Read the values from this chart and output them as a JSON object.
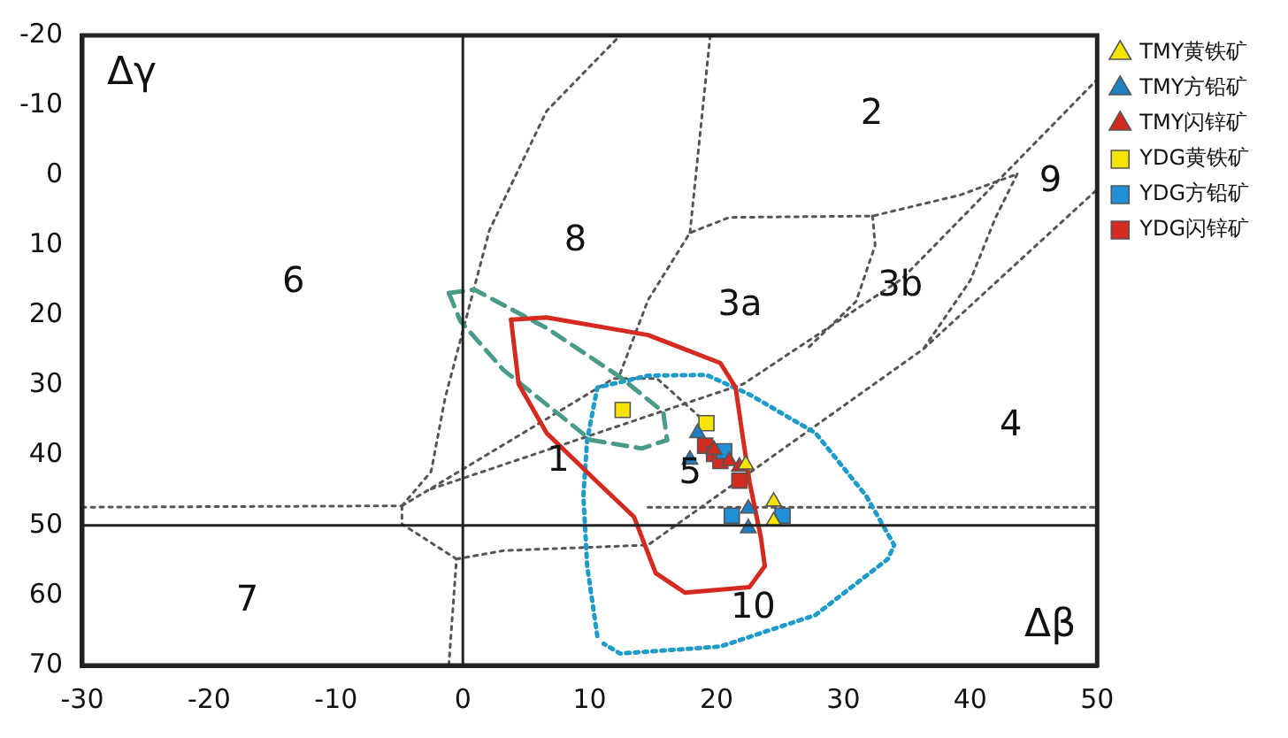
{
  "chart_data": {
    "type": "scatter",
    "xlabel": "Δβ",
    "ylabel": "Δγ",
    "xlim": [
      -30,
      50
    ],
    "xticks": [
      -30,
      -20,
      -10,
      0,
      10,
      20,
      30,
      40,
      50
    ],
    "ylim": [
      70,
      -20
    ],
    "yticks": [
      -20,
      -10,
      0,
      10,
      20,
      30,
      40,
      50,
      60,
      70
    ],
    "grid": false,
    "legend": "right",
    "ref_lines": [
      {
        "axis": "x",
        "value": 0,
        "color": "#222222",
        "line_style": "solid"
      },
      {
        "axis": "y",
        "value": 50,
        "color": "#222222",
        "line_style": "solid"
      }
    ],
    "series": [
      {
        "name": "TMY黄铁矿",
        "color": "#f5e300",
        "marker": "triangle",
        "x": [
          24.5,
          24.5,
          22.3
        ],
        "values": [
          46.6,
          49.4,
          41.3
        ]
      },
      {
        "name": "TMY方铅矿",
        "color": "#1f7fc4",
        "marker": "triangle",
        "x": [
          17.9,
          18.5,
          22.5,
          22.5
        ],
        "values": [
          40.6,
          36.8,
          47.6,
          50.4
        ]
      },
      {
        "name": "TMY闪锌矿",
        "color": "#d42a20",
        "marker": "triangle",
        "x": [
          19.8,
          21.0,
          21.8
        ],
        "values": [
          39.2,
          40.8,
          41.6
        ]
      },
      {
        "name": "YDG黄铁矿",
        "color": "#f5e300",
        "marker": "square",
        "x": [
          12.6,
          19.2
        ],
        "values": [
          33.5,
          35.4
        ]
      },
      {
        "name": "YDG方铅矿",
        "color": "#1f8fd8",
        "marker": "square",
        "x": [
          20.6,
          21.2,
          25.2
        ],
        "values": [
          39.4,
          48.6,
          48.6
        ]
      },
      {
        "name": "YDG闪锌矿",
        "color": "#d42a20",
        "marker": "square",
        "x": [
          19.1,
          19.8,
          20.3,
          21.8
        ],
        "values": [
          38.6,
          39.8,
          40.8,
          43.6
        ]
      },
      {
        "type": "line",
        "color": "#d42a20",
        "line_style": "solid",
        "x": [
          3.8,
          6.6,
          14.6,
          20.3,
          21.5,
          22.1,
          22.6,
          23.5,
          23.8
        ],
        "values": [
          20.6,
          20.3,
          22.8,
          26.8,
          30.3,
          37.8,
          43.8,
          51.8,
          55.8
        ]
      },
      {
        "type": "line",
        "color": "#d42a20",
        "line_style": "solid",
        "x": [
          3.8,
          4.4,
          6.6,
          10.6,
          13.5,
          15.2,
          17.5,
          22.6,
          23.8
        ],
        "values": [
          20.6,
          29.8,
          36.8,
          43.8,
          48.8,
          56.8,
          59.6,
          58.8,
          55.8
        ]
      },
      {
        "type": "line",
        "color": "#4a9a8a",
        "line_style": "dashed",
        "x": [
          -1.1,
          0.9,
          6.6,
          12.4,
          15.8,
          16.1
        ],
        "values": [
          16.8,
          16.3,
          21.8,
          28.8,
          33.8,
          37.8
        ]
      },
      {
        "type": "line",
        "color": "#4a9a8a",
        "line_style": "dashed",
        "x": [
          -1.1,
          -0.2,
          3.2,
          10.1,
          14.1,
          16.1
        ],
        "values": [
          16.8,
          20.8,
          27.8,
          37.8,
          39,
          37.8
        ]
      },
      {
        "type": "line",
        "color": "#1e9bc8",
        "line_style": "dotted",
        "x": [
          10.6,
          9.8,
          9.5,
          9.8,
          10.6,
          14.6,
          19.2,
          22.6,
          27.8,
          31.8,
          34,
          33.5,
          27.8,
          20.3,
          12.4,
          11.1
        ],
        "values": [
          65.8,
          55.8,
          45.8,
          37.8,
          30.3,
          28.6,
          28.5,
          31.3,
          36.8,
          45.8,
          52.8,
          54.8,
          62.8,
          67.3,
          68.3,
          66.9
        ]
      },
      {
        "type": "line",
        "color": "#555555",
        "line_style": "dotted",
        "x": [
          -30,
          -4.8
        ],
        "values": [
          47.4,
          47.2
        ]
      },
      {
        "type": "line",
        "color": "#555555",
        "line_style": "dotted",
        "x": [
          14.6,
          50
        ],
        "values": [
          47.4,
          47.4
        ]
      },
      {
        "type": "line",
        "color": "#555555",
        "line_style": "dotted",
        "x": [
          -4.8,
          -2.5,
          -1.4,
          2.1,
          6.6,
          12.4
        ],
        "values": [
          47.2,
          42.3,
          31.8,
          7.8,
          -9.2,
          -20
        ]
      },
      {
        "type": "line",
        "color": "#555555",
        "line_style": "dotted",
        "x": [
          -4.8,
          -4.8,
          -0.5,
          -1.1
        ],
        "values": [
          47.2,
          49.8,
          54.8,
          69.8
        ]
      },
      {
        "type": "line",
        "color": "#555555",
        "line_style": "dotted",
        "x": [
          -4.8,
          11.9,
          15.3,
          19.9
        ],
        "values": [
          47.2,
          29,
          29,
          36.5
        ]
      },
      {
        "type": "line",
        "color": "#555555",
        "line_style": "dotted",
        "x": [
          -0.5,
          3.2,
          14.6,
          36.3,
          50
        ],
        "values": [
          54.8,
          53.6,
          52.8,
          24.8,
          2
        ]
      },
      {
        "type": "line",
        "color": "#555555",
        "line_style": "dotted",
        "x": [
          -2.5,
          22.1,
          34.6,
          50
        ],
        "values": [
          44.8,
          29.8,
          14.8,
          -13.7
        ]
      },
      {
        "type": "line",
        "color": "#555555",
        "line_style": "dotted",
        "x": [
          19.5,
          17.9
        ],
        "values": [
          -20,
          8.2
        ]
      },
      {
        "type": "line",
        "color": "#555555",
        "line_style": "dotted",
        "x": [
          12.4,
          14.6,
          17.9,
          21,
          32.3,
          39.2,
          43.7
        ],
        "values": [
          28.3,
          17.8,
          8.2,
          6,
          5.8,
          2.8,
          -0.2
        ]
      },
      {
        "type": "line",
        "color": "#555555",
        "line_style": "dotted",
        "x": [
          32.3,
          32.5,
          31,
          27
        ],
        "values": [
          5.8,
          10,
          18,
          25
        ]
      },
      {
        "type": "line",
        "color": "#555555",
        "line_style": "dotted",
        "x": [
          43.7,
          42,
          40,
          36.3
        ],
        "values": [
          -0.2,
          6,
          15,
          24.8
        ]
      }
    ],
    "annotations": [
      "2",
      "9",
      "8",
      "6",
      "3a",
      "3b",
      "4",
      "1",
      "5",
      "7",
      "10"
    ]
  }
}
